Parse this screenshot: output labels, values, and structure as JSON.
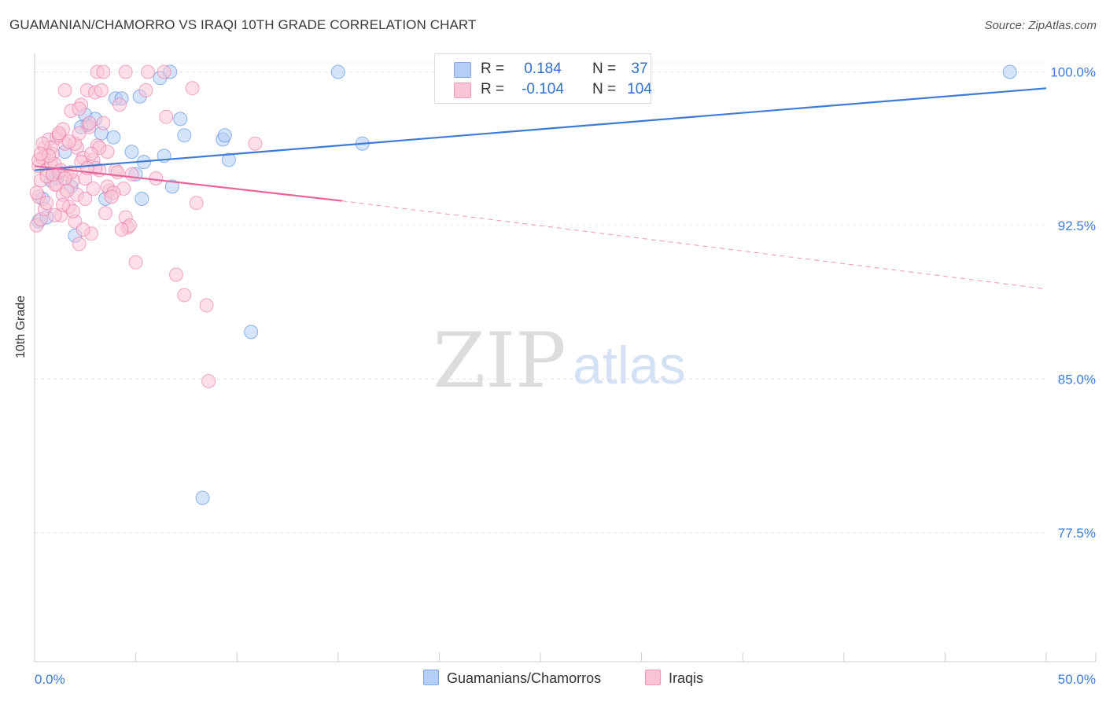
{
  "title": "GUAMANIAN/CHAMORRO VS IRAQI 10TH GRADE CORRELATION CHART",
  "source": "Source: ZipAtlas.com",
  "watermark": {
    "zip": "ZIP",
    "atlas": "atlas"
  },
  "legend": {
    "r_label": "R =",
    "n_label": "N =",
    "rows": [
      {
        "r": "0.184",
        "n": "37",
        "fill": "#b5cef5",
        "stroke": "#7ea6e0"
      },
      {
        "r": "-0.104",
        "n": "104",
        "fill": "#fac4d6",
        "stroke": "#ee9ab7"
      }
    ]
  },
  "bottom_legend": [
    {
      "label": "Guamanians/Chamorros",
      "fill": "#b5cef5",
      "stroke": "#7ea6e0"
    },
    {
      "label": "Iraqis",
      "fill": "#fac4d6",
      "stroke": "#ee9ab7"
    }
  ],
  "chart_data": {
    "type": "scatter",
    "title": "GUAMANIAN/CHAMORRO VS IRAQI 10TH GRADE CORRELATION CHART",
    "xlabel": "",
    "ylabel": "10th Grade",
    "xlim": [
      0,
      50
    ],
    "ylim": [
      71.2,
      100.9
    ],
    "x_tick_labels": [
      {
        "value": 0,
        "label": "0.0%"
      },
      {
        "value": 50,
        "label": "50.0%"
      }
    ],
    "y_tick_labels": [
      {
        "value": 100.0,
        "label": "100.0%"
      },
      {
        "value": 92.5,
        "label": "92.5%"
      },
      {
        "value": 85.0,
        "label": "85.0%"
      },
      {
        "value": 77.5,
        "label": "77.5%"
      }
    ],
    "x_minor_ticks": [
      0,
      5,
      10,
      15,
      20,
      25,
      30,
      35,
      40,
      45,
      50
    ],
    "series": [
      {
        "name": "Guamanians/Chamorros",
        "color": "#3d7bd8",
        "fill": "#b5cef5",
        "trend": {
          "x0": 0,
          "y0": 95.2,
          "x1": 50,
          "y1": 99.2
        },
        "points": [
          [
            0.2,
            92.7
          ],
          [
            0.4,
            93.8
          ],
          [
            0.6,
            92.9
          ],
          [
            1.0,
            95.0
          ],
          [
            1.1,
            94.8
          ],
          [
            1.5,
            96.1
          ],
          [
            1.8,
            94.4
          ],
          [
            2.0,
            92.0
          ],
          [
            2.5,
            97.9
          ],
          [
            2.6,
            97.4
          ],
          [
            3.0,
            97.7
          ],
          [
            3.3,
            97.0
          ],
          [
            3.5,
            93.8
          ],
          [
            3.9,
            96.8
          ],
          [
            4.0,
            98.7
          ],
          [
            4.3,
            98.7
          ],
          [
            4.8,
            96.1
          ],
          [
            5.0,
            95.0
          ],
          [
            5.2,
            98.8
          ],
          [
            5.3,
            93.8
          ],
          [
            5.4,
            95.6
          ],
          [
            6.2,
            99.7
          ],
          [
            6.4,
            95.9
          ],
          [
            6.7,
            100.0
          ],
          [
            6.8,
            94.4
          ],
          [
            7.2,
            97.7
          ],
          [
            7.4,
            96.9
          ],
          [
            8.3,
            79.2
          ],
          [
            9.3,
            96.7
          ],
          [
            9.4,
            96.9
          ],
          [
            9.6,
            95.7
          ],
          [
            10.7,
            87.3
          ],
          [
            15.0,
            100.0
          ],
          [
            16.2,
            96.5
          ],
          [
            48.2,
            100.0
          ],
          [
            0.8,
            94.7
          ],
          [
            2.3,
            97.3
          ]
        ]
      },
      {
        "name": "Iraqis",
        "color": "#e8679a",
        "fill": "#fac4d6",
        "trend": {
          "x0": 0,
          "y0": 95.4,
          "x1": 15.2,
          "y1": 93.7
        },
        "trend_extended": {
          "x0": 15.2,
          "y0": 93.7,
          "x1": 50,
          "y1": 89.4
        },
        "points": [
          [
            0.1,
            92.5
          ],
          [
            0.2,
            93.9
          ],
          [
            0.2,
            95.4
          ],
          [
            0.3,
            94.7
          ],
          [
            0.4,
            95.8
          ],
          [
            0.5,
            96.3
          ],
          [
            0.6,
            95.2
          ],
          [
            0.7,
            96.7
          ],
          [
            0.8,
            95.6
          ],
          [
            0.9,
            96.0
          ],
          [
            1.0,
            94.5
          ],
          [
            1.1,
            96.8
          ],
          [
            1.2,
            95.1
          ],
          [
            1.3,
            93.0
          ],
          [
            1.4,
            94.0
          ],
          [
            1.5,
            96.5
          ],
          [
            1.6,
            95.0
          ],
          [
            1.7,
            93.4
          ],
          [
            1.8,
            98.1
          ],
          [
            1.9,
            94.7
          ],
          [
            2.0,
            92.7
          ],
          [
            2.1,
            96.3
          ],
          [
            2.2,
            91.6
          ],
          [
            2.3,
            98.4
          ],
          [
            2.4,
            95.8
          ],
          [
            2.5,
            94.8
          ],
          [
            2.6,
            99.1
          ],
          [
            2.7,
            97.3
          ],
          [
            2.8,
            92.1
          ],
          [
            3.0,
            99.0
          ],
          [
            3.1,
            96.4
          ],
          [
            3.2,
            95.2
          ],
          [
            3.3,
            99.1
          ],
          [
            3.4,
            97.5
          ],
          [
            3.5,
            93.1
          ],
          [
            3.6,
            96.1
          ],
          [
            3.7,
            94.2
          ],
          [
            4.0,
            95.2
          ],
          [
            4.2,
            98.4
          ],
          [
            4.4,
            94.3
          ],
          [
            4.5,
            92.9
          ],
          [
            4.6,
            92.4
          ],
          [
            4.7,
            92.5
          ],
          [
            4.8,
            95.0
          ],
          [
            5.0,
            90.7
          ],
          [
            5.5,
            99.1
          ],
          [
            6.0,
            94.8
          ],
          [
            6.5,
            97.8
          ],
          [
            7.0,
            90.1
          ],
          [
            7.4,
            89.1
          ],
          [
            7.8,
            99.2
          ],
          [
            8.0,
            93.6
          ],
          [
            8.5,
            88.6
          ],
          [
            8.6,
            84.9
          ],
          [
            10.9,
            96.5
          ],
          [
            3.1,
            100.0
          ],
          [
            3.4,
            100.0
          ],
          [
            4.5,
            100.0
          ],
          [
            5.6,
            100.0
          ],
          [
            6.4,
            100.0
          ],
          [
            1.5,
            99.1
          ],
          [
            2.2,
            98.2
          ],
          [
            2.7,
            97.5
          ],
          [
            1.2,
            96.9
          ],
          [
            0.6,
            94.9
          ],
          [
            1.0,
            95.5
          ],
          [
            1.4,
            97.2
          ],
          [
            2.0,
            96.5
          ],
          [
            2.3,
            95.6
          ],
          [
            0.3,
            92.8
          ],
          [
            0.5,
            93.3
          ],
          [
            0.8,
            96.3
          ],
          [
            1.1,
            94.5
          ],
          [
            1.3,
            95.2
          ],
          [
            1.7,
            96.6
          ],
          [
            1.9,
            93.2
          ],
          [
            2.1,
            94.0
          ],
          [
            2.4,
            92.3
          ],
          [
            2.9,
            95.7
          ],
          [
            3.2,
            96.3
          ],
          [
            3.6,
            94.4
          ],
          [
            3.9,
            94.1
          ],
          [
            4.1,
            95.1
          ],
          [
            0.2,
            95.7
          ],
          [
            0.4,
            96.5
          ],
          [
            0.9,
            95.0
          ],
          [
            1.2,
            97.0
          ],
          [
            1.6,
            94.2
          ],
          [
            2.5,
            93.8
          ],
          [
            2.8,
            96.0
          ],
          [
            3.0,
            95.3
          ],
          [
            3.8,
            93.9
          ],
          [
            4.3,
            92.3
          ],
          [
            0.7,
            95.9
          ],
          [
            1.0,
            93.0
          ],
          [
            1.4,
            93.5
          ],
          [
            1.8,
            95.1
          ],
          [
            2.2,
            97.0
          ],
          [
            2.6,
            95.3
          ],
          [
            2.9,
            94.3
          ],
          [
            0.1,
            94.1
          ],
          [
            0.3,
            96.0
          ],
          [
            0.6,
            93.6
          ],
          [
            1.5,
            94.8
          ]
        ]
      }
    ]
  }
}
